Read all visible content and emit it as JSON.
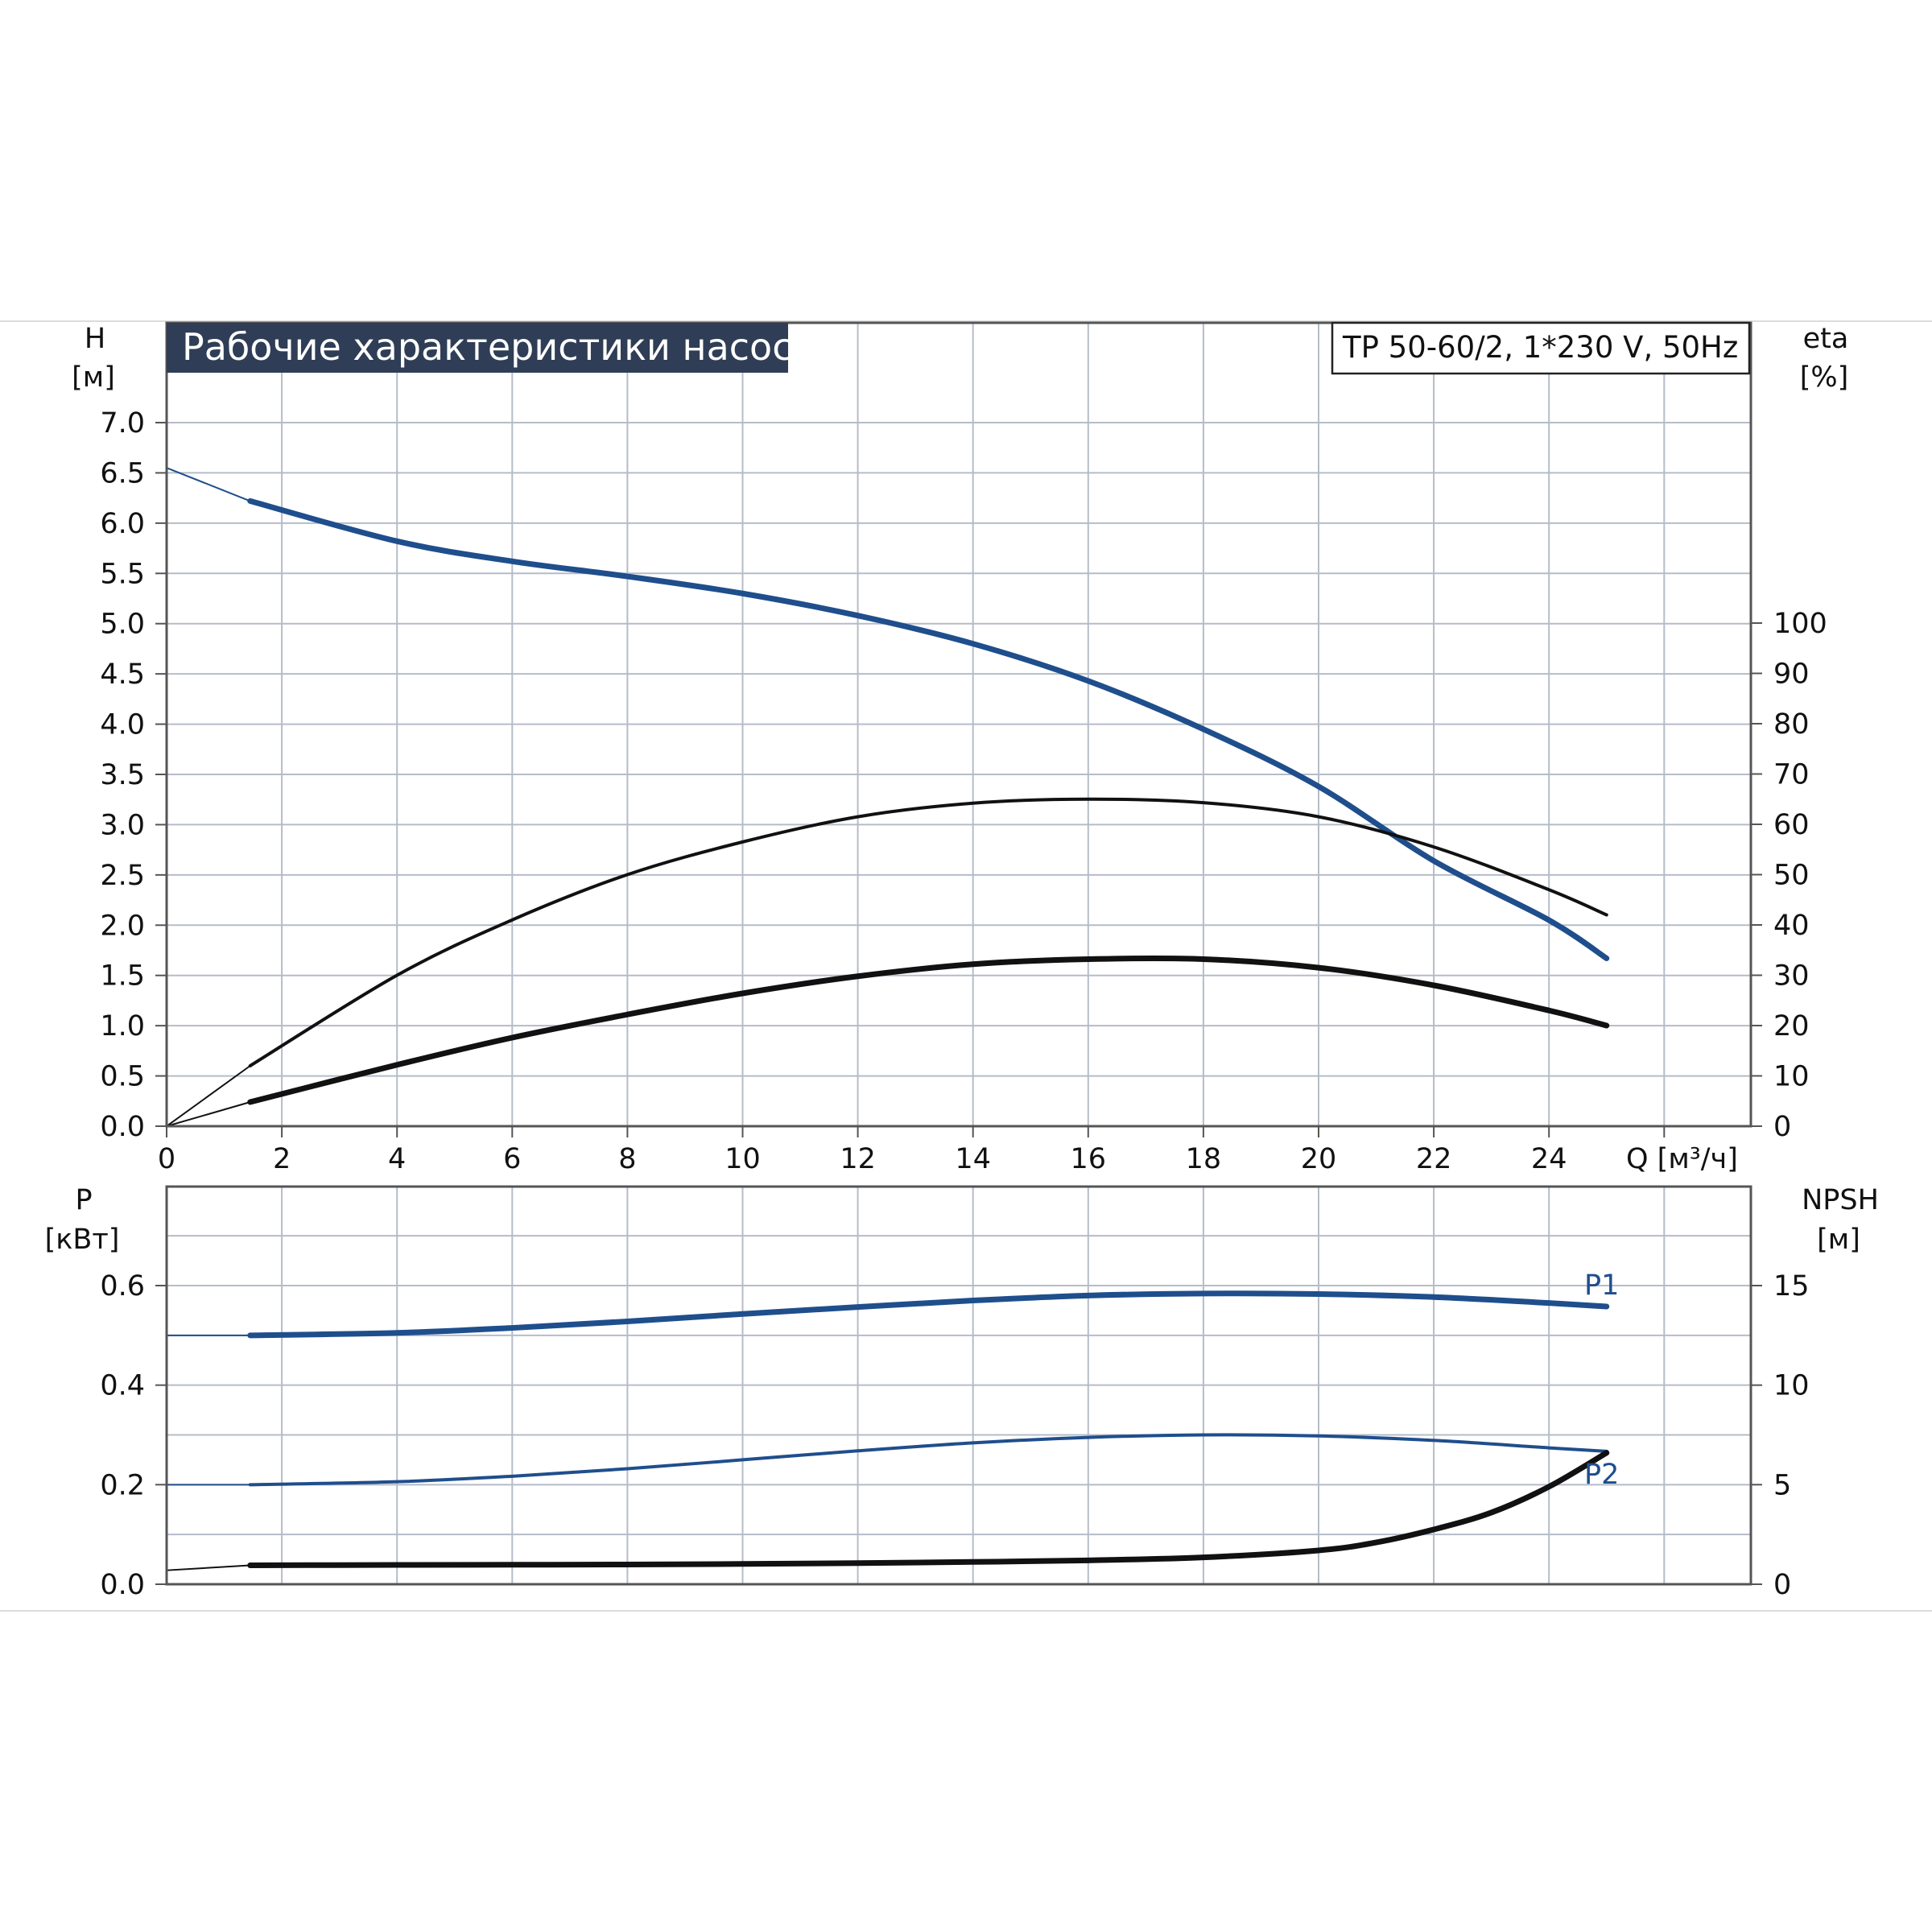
{
  "title": "Рабочие характеристики насоса",
  "model": "TP 50-60/2, 1*230 V, 50Hz",
  "colors": {
    "grid": "#b5bcc9",
    "frame": "#555555",
    "title_bg": "#2f3e56",
    "head_curve": "#1f4e8c",
    "black_curve": "#111111",
    "power_curve": "#1f4e8c"
  },
  "chart_data": [
    {
      "type": "line",
      "title": "Рабочие характеристики насоса",
      "xlabel": "Q [м³/ч]",
      "xlim": [
        0,
        27.5
      ],
      "x_ticks": [
        "0",
        "2",
        "4",
        "6",
        "8",
        "10",
        "12",
        "14",
        "16",
        "18",
        "20",
        "22",
        "24"
      ],
      "y_left_label": [
        "H",
        "[м]"
      ],
      "ylim_left": [
        0,
        7.0
      ],
      "y_left_ticks": [
        "0.0",
        "0.5",
        "1.0",
        "1.5",
        "2.0",
        "2.5",
        "3.0",
        "3.5",
        "4.0",
        "4.5",
        "5.0",
        "5.5",
        "6.0",
        "6.5",
        "7.0"
      ],
      "y_right_label": [
        "eta",
        "[%]"
      ],
      "ylim_right": [
        0,
        140
      ],
      "y_right_ticks": [
        "0",
        "10",
        "20",
        "30",
        "40",
        "50",
        "60",
        "70",
        "80",
        "90",
        "100"
      ],
      "grid": true,
      "series": [
        {
          "name": "",
          "axis": "left",
          "style": "head_thin",
          "x": [
            0,
            1.45
          ],
          "y": [
            6.55,
            6.22
          ]
        },
        {
          "name": "",
          "axis": "left",
          "style": "head",
          "x": [
            1.45,
            4,
            6,
            8,
            10,
            12,
            14,
            16,
            18,
            20,
            22,
            24,
            25
          ],
          "y": [
            6.22,
            5.82,
            5.62,
            5.47,
            5.3,
            5.08,
            4.8,
            4.43,
            3.95,
            3.38,
            2.64,
            2.05,
            1.67
          ]
        },
        {
          "name": "",
          "axis": "right",
          "style": "eta_thin",
          "x": [
            0,
            1.45
          ],
          "y": [
            0,
            12
          ]
        },
        {
          "name": "",
          "axis": "right",
          "style": "eta",
          "x": [
            1.45,
            4,
            6,
            8,
            10,
            12,
            14,
            16,
            18,
            20,
            22,
            24,
            25
          ],
          "y": [
            12,
            30,
            41,
            50,
            56.5,
            61.5,
            64.2,
            65,
            64.3,
            61.5,
            55.5,
            47,
            42
          ]
        },
        {
          "name": "",
          "axis": "right",
          "style": "eta_thin",
          "x": [
            0,
            1.45
          ],
          "y": [
            0,
            4.8
          ]
        },
        {
          "name": "",
          "axis": "right",
          "style": "eta_thick",
          "x": [
            1.45,
            4,
            6,
            8,
            10,
            12,
            14,
            16,
            18,
            20,
            22,
            24,
            25
          ],
          "y": [
            4.8,
            12.2,
            17.6,
            22.2,
            26.4,
            29.8,
            32.2,
            33.2,
            33.2,
            31.5,
            28,
            23,
            20
          ]
        }
      ]
    },
    {
      "type": "line",
      "xlim": [
        0,
        27.5
      ],
      "y_left_label": [
        "P",
        "[кВт]"
      ],
      "ylim_left": [
        0,
        0.8
      ],
      "y_left_ticks": [
        "0.0",
        "0.2",
        "0.4",
        "0.6"
      ],
      "y_right_label": [
        "NPSH",
        "[м]"
      ],
      "ylim_right": [
        0,
        20
      ],
      "y_right_ticks": [
        "0",
        "5",
        "10",
        "15"
      ],
      "grid": true,
      "series": [
        {
          "name": "P1",
          "axis": "left",
          "style": "power_thick",
          "x": [
            1.45,
            4,
            6,
            8,
            10,
            12,
            14,
            16,
            18,
            20,
            22,
            24,
            25
          ],
          "y": [
            0.5,
            0.505,
            0.515,
            0.528,
            0.543,
            0.557,
            0.57,
            0.58,
            0.584,
            0.583,
            0.577,
            0.565,
            0.558
          ]
        },
        {
          "name": "P2",
          "axis": "left",
          "style": "power_thin",
          "x": [
            1.45,
            4,
            6,
            8,
            10,
            12,
            14,
            16,
            18,
            20,
            22,
            24,
            25
          ],
          "y": [
            0.2,
            0.206,
            0.217,
            0.232,
            0.25,
            0.268,
            0.284,
            0.295,
            0.3,
            0.298,
            0.289,
            0.274,
            0.267
          ]
        },
        {
          "name": "",
          "axis": "right",
          "style": "npsh_thin",
          "x": [
            0,
            1.45
          ],
          "y": [
            0.7,
            0.95
          ]
        },
        {
          "name": "",
          "axis": "right",
          "style": "npsh",
          "x": [
            1.45,
            4,
            6,
            8,
            10,
            12,
            14,
            16,
            18,
            20,
            21,
            22,
            23,
            24,
            25
          ],
          "y": [
            0.95,
            0.97,
            0.98,
            0.99,
            1.02,
            1.06,
            1.12,
            1.2,
            1.35,
            1.7,
            2.1,
            2.75,
            3.6,
            4.9,
            6.6
          ]
        }
      ]
    }
  ]
}
